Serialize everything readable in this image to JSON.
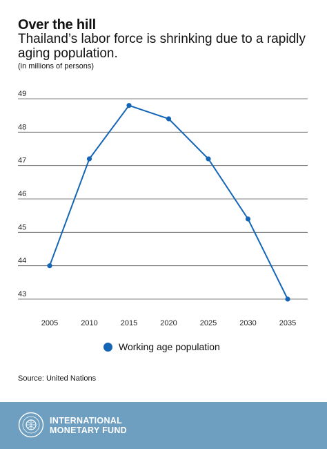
{
  "title": "Over the hill",
  "subtitle": "Thailand’s labor force is shrinking due to a rapidly aging population.",
  "units": "(in millions of persons)",
  "chart_data": {
    "type": "line",
    "title": "Over the hill",
    "subtitle": "Thailand’s labor force is shrinking due to a rapidly aging population.",
    "ylabel": "(in millions of persons)",
    "x": [
      2005,
      2010,
      2015,
      2020,
      2025,
      2030,
      2035
    ],
    "series": [
      {
        "name": "Working age population",
        "values": [
          44.0,
          47.2,
          48.8,
          48.4,
          47.2,
          45.4,
          43.0
        ]
      }
    ],
    "ylim": [
      43,
      49
    ],
    "yticks": [
      49,
      48,
      47,
      46,
      45,
      44,
      43
    ],
    "grid": true,
    "legend": "bottom-center",
    "color": "#1565b7"
  },
  "legend": {
    "label": "Working age population"
  },
  "source": "Source: United Nations",
  "footer": {
    "line1": "INTERNATIONAL",
    "line2": "MONETARY FUND",
    "bg": "#6f9fc0"
  }
}
